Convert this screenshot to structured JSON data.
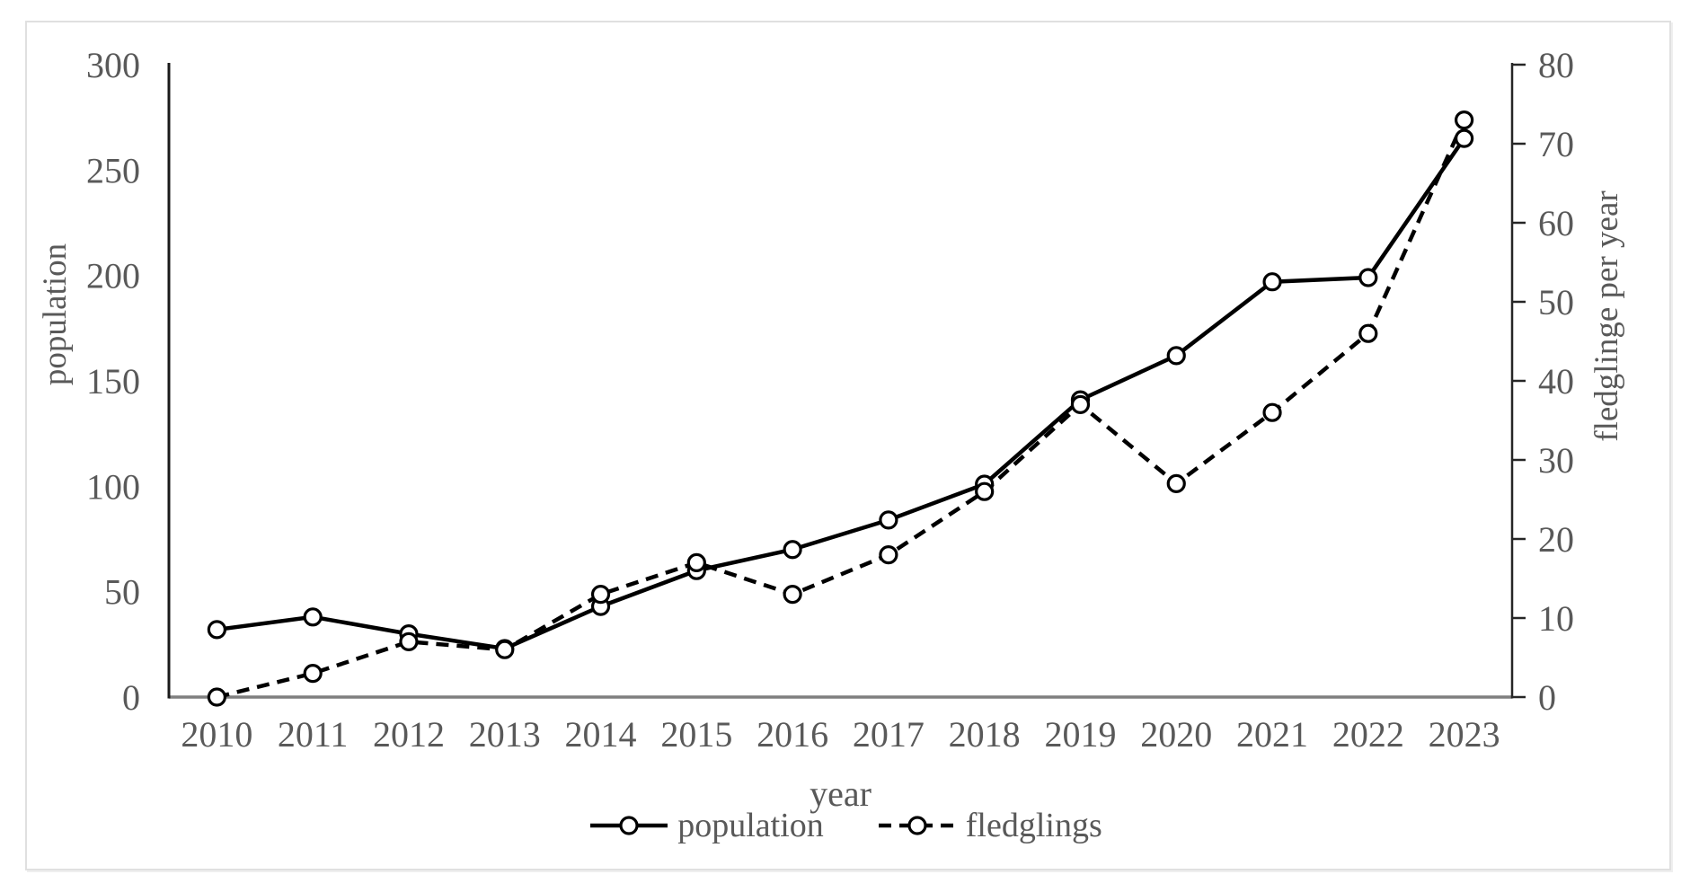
{
  "chart_data": {
    "type": "line",
    "title": "",
    "categories": [
      "2010",
      "2011",
      "2012",
      "2013",
      "2014",
      "2015",
      "2016",
      "2017",
      "2018",
      "2019",
      "2020",
      "2021",
      "2022",
      "2023"
    ],
    "series": [
      {
        "name": "population",
        "axis": "left",
        "line_style": "solid",
        "marker": "circle",
        "color": "#000000",
        "values": [
          32,
          38,
          30,
          23,
          43,
          60,
          70,
          84,
          101,
          141,
          162,
          197,
          199,
          265
        ]
      },
      {
        "name": "fledglings",
        "axis": "right",
        "line_style": "dashed",
        "marker": "circle",
        "color": "#000000",
        "values": [
          0,
          3,
          7,
          6,
          13,
          17,
          13,
          18,
          26,
          37,
          27,
          36,
          46,
          73
        ]
      }
    ],
    "x_axis": {
      "label": "year"
    },
    "left_axis": {
      "label": "population",
      "min": 0,
      "max": 300,
      "ticks": [
        0,
        50,
        100,
        150,
        200,
        250,
        300
      ]
    },
    "right_axis": {
      "label": "fledglinge per year",
      "min": 0,
      "max": 80,
      "ticks": [
        0,
        10,
        20,
        30,
        40,
        50,
        60,
        70,
        80
      ]
    },
    "legend": {
      "position": "bottom",
      "items": [
        {
          "label": "population",
          "style": "solid"
        },
        {
          "label": "fledglings",
          "style": "dashed"
        }
      ]
    },
    "grid": false
  },
  "colors": {
    "series_line": "#000000",
    "tick_text": "#595959",
    "axis_left": "#1a1a1a",
    "axis_right": "#262626",
    "axis_baseline": "#7f7f7f",
    "panel_border": "#e0e0e0",
    "background": "#ffffff"
  }
}
